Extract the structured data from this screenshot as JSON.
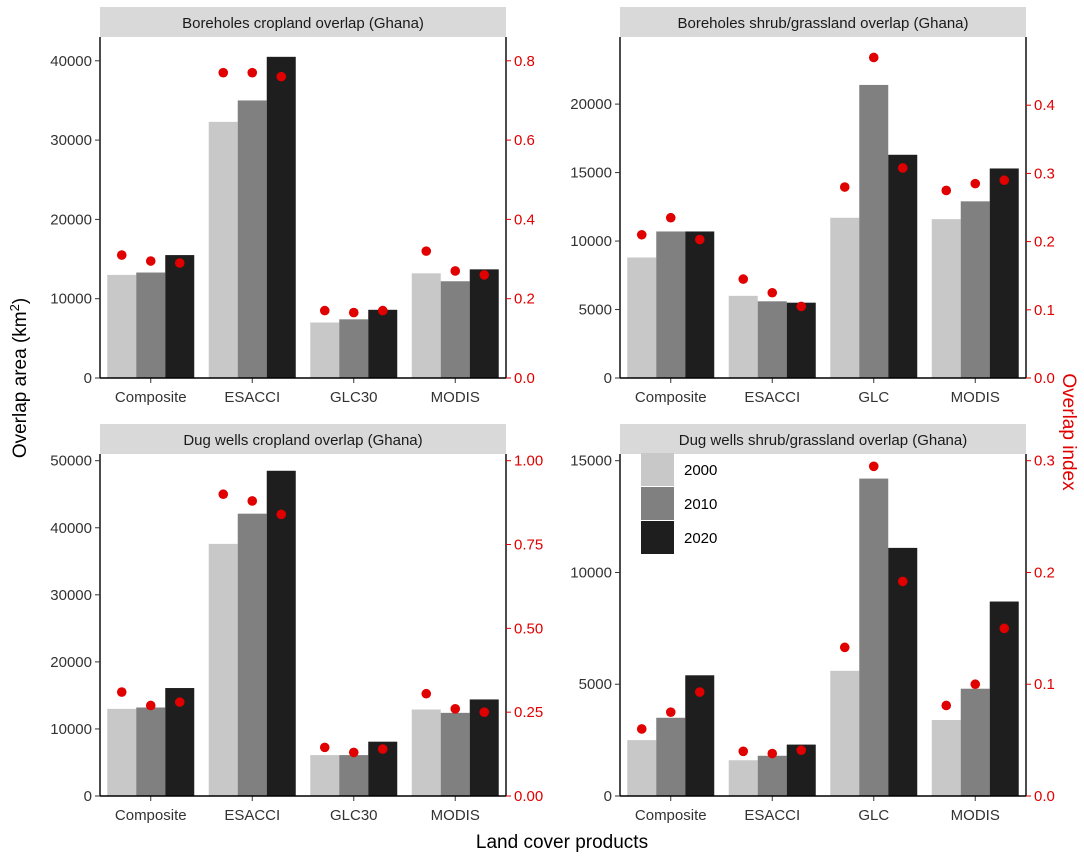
{
  "figure": {
    "xlabel": "Land cover products",
    "ylabel_prefix": "Overlap area (km",
    "ylabel_sup": "2",
    "ylabel_suffix": ")",
    "y2label": "Overlap index"
  },
  "colors": {
    "y2000": "#c8c8c8",
    "y2010": "#808080",
    "y2020": "#1e1e1e",
    "dot": "#e00000",
    "strip": "#d9d9d9"
  },
  "legend": {
    "placement": "inside bottom-right panel, top-left",
    "items": [
      {
        "label": "2000",
        "color": "#c8c8c8"
      },
      {
        "label": "2010",
        "color": "#808080"
      },
      {
        "label": "2020",
        "color": "#1e1e1e"
      }
    ]
  },
  "chart_data": [
    {
      "type": "bar",
      "title": "Boreholes cropland overlap (Ghana)",
      "categories": [
        "Composite",
        "ESACCI",
        "GLC30",
        "MODIS"
      ],
      "series": [
        {
          "name": "2000",
          "values": [
            13000,
            32300,
            7000,
            13200
          ]
        },
        {
          "name": "2010",
          "values": [
            13300,
            35000,
            7400,
            12200
          ]
        },
        {
          "name": "2020",
          "values": [
            15500,
            40500,
            8600,
            13700
          ]
        }
      ],
      "index_series": [
        {
          "name": "2000",
          "values": [
            0.31,
            0.77,
            0.17,
            0.32
          ]
        },
        {
          "name": "2010",
          "values": [
            0.295,
            0.77,
            0.165,
            0.27
          ]
        },
        {
          "name": "2020",
          "values": [
            0.29,
            0.76,
            0.17,
            0.26
          ]
        }
      ],
      "ylim": [
        0,
        43000
      ],
      "yticks": [
        0,
        10000,
        20000,
        30000,
        40000
      ],
      "y2lim": [
        0,
        0.86
      ],
      "y2ticks": [
        0,
        0.2,
        0.4,
        0.6,
        0.8
      ],
      "ytick_labels": [
        "0",
        "10000",
        "20000",
        "30000",
        "40000"
      ],
      "y2tick_labels": [
        "0.0",
        "0.2",
        "0.4",
        "0.6",
        "0.8"
      ]
    },
    {
      "type": "bar",
      "title": "Boreholes shrub/grassland overlap (Ghana)",
      "categories": [
        "Composite",
        "ESACCI",
        "GLC",
        "MODIS"
      ],
      "series": [
        {
          "name": "2000",
          "values": [
            8800,
            6000,
            11700,
            11600
          ]
        },
        {
          "name": "2010",
          "values": [
            10700,
            5600,
            21400,
            12900
          ]
        },
        {
          "name": "2020",
          "values": [
            10700,
            5500,
            16300,
            15300
          ]
        }
      ],
      "index_series": [
        {
          "name": "2000",
          "values": [
            0.21,
            0.145,
            0.28,
            0.275
          ]
        },
        {
          "name": "2010",
          "values": [
            0.235,
            0.125,
            0.47,
            0.285
          ]
        },
        {
          "name": "2020",
          "values": [
            0.203,
            0.105,
            0.308,
            0.29
          ]
        }
      ],
      "ylim": [
        0,
        24900
      ],
      "yticks": [
        0,
        5000,
        10000,
        15000,
        20000
      ],
      "y2lim": [
        0,
        0.5
      ],
      "y2ticks": [
        0,
        0.1,
        0.2,
        0.3,
        0.4
      ],
      "ytick_labels": [
        "0",
        "5000",
        "10000",
        "15000",
        "20000"
      ],
      "y2tick_labels": [
        "0.0",
        "0.1",
        "0.2",
        "0.3",
        "0.4"
      ]
    },
    {
      "type": "bar",
      "title": "Dug wells cropland overlap (Ghana)",
      "categories": [
        "Composite",
        "ESACCI",
        "GLC30",
        "MODIS"
      ],
      "series": [
        {
          "name": "2000",
          "values": [
            13000,
            37600,
            6100,
            12900
          ]
        },
        {
          "name": "2010",
          "values": [
            13200,
            42100,
            6100,
            12400
          ]
        },
        {
          "name": "2020",
          "values": [
            16100,
            48500,
            8100,
            14400
          ]
        }
      ],
      "index_series": [
        {
          "name": "2000",
          "values": [
            0.31,
            0.9,
            0.145,
            0.305
          ]
        },
        {
          "name": "2010",
          "values": [
            0.27,
            0.88,
            0.13,
            0.26
          ]
        },
        {
          "name": "2020",
          "values": [
            0.28,
            0.84,
            0.14,
            0.25
          ]
        }
      ],
      "ylim": [
        0,
        51000
      ],
      "yticks": [
        0,
        10000,
        20000,
        30000,
        40000,
        50000
      ],
      "y2lim": [
        0,
        1.02
      ],
      "y2ticks": [
        0,
        0.25,
        0.5,
        0.75,
        1.0
      ],
      "ytick_labels": [
        "0",
        "10000",
        "20000",
        "30000",
        "40000",
        "50000"
      ],
      "y2tick_labels": [
        "0.00",
        "0.25",
        "0.50",
        "0.75",
        "1.00"
      ]
    },
    {
      "type": "bar",
      "title": "Dug wells shrub/grassland overlap (Ghana)",
      "categories": [
        "Composite",
        "ESACCI",
        "GLC",
        "MODIS"
      ],
      "series": [
        {
          "name": "2000",
          "values": [
            2500,
            1600,
            5600,
            3400
          ]
        },
        {
          "name": "2010",
          "values": [
            3500,
            1800,
            14200,
            4800
          ]
        },
        {
          "name": "2020",
          "values": [
            5400,
            2300,
            11100,
            8700
          ]
        }
      ],
      "index_series": [
        {
          "name": "2000",
          "values": [
            0.06,
            0.04,
            0.133,
            0.081
          ]
        },
        {
          "name": "2010",
          "values": [
            0.075,
            0.038,
            0.295,
            0.1
          ]
        },
        {
          "name": "2020",
          "values": [
            0.093,
            0.041,
            0.192,
            0.15
          ]
        }
      ],
      "ylim": [
        0,
        15300
      ],
      "yticks": [
        0,
        5000,
        10000,
        15000
      ],
      "y2lim": [
        0,
        0.306
      ],
      "y2ticks": [
        0,
        0.1,
        0.2,
        0.3
      ],
      "ytick_labels": [
        "0",
        "5000",
        "10000",
        "15000"
      ],
      "y2tick_labels": [
        "0.0",
        "0.1",
        "0.2",
        "0.3"
      ]
    }
  ]
}
